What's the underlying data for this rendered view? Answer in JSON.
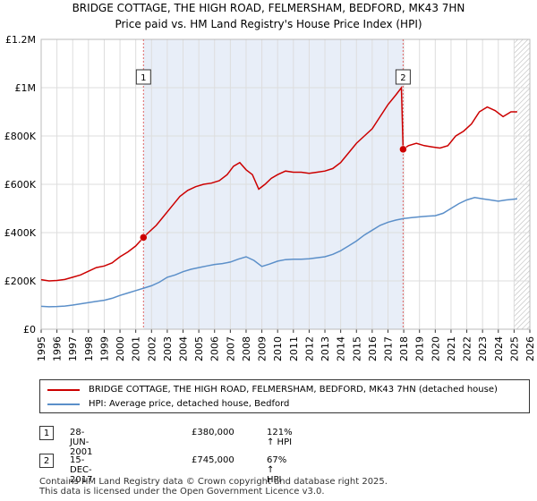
{
  "title_line1": "BRIDGE COTTAGE, THE HIGH ROAD, FELMERSHAM, BEDFORD, MK43 7HN",
  "title_line2": "Price paid vs. HM Land Registry's House Price Index (HPI)",
  "colors": {
    "property": "#cc0000",
    "hpi": "#5b8fc9",
    "shade": "#e8eef8",
    "marker": "#cc0000"
  },
  "chart_data": {
    "type": "line",
    "ylabels": [
      "£0",
      "£200K",
      "£400K",
      "£600K",
      "£800K",
      "£1M",
      "£1.2M"
    ],
    "yticks": [
      0,
      200000,
      400000,
      600000,
      800000,
      1000000,
      1200000
    ],
    "ylim": [
      0,
      1200000
    ],
    "xlim": [
      1995,
      2026
    ],
    "xticks": [
      "1995",
      "1996",
      "1997",
      "1998",
      "1999",
      "2000",
      "2001",
      "2002",
      "2003",
      "2004",
      "2005",
      "2006",
      "2007",
      "2008",
      "2009",
      "2010",
      "2011",
      "2012",
      "2013",
      "2014",
      "2015",
      "2016",
      "2017",
      "2018",
      "2019",
      "2020",
      "2021",
      "2022",
      "2023",
      "2024",
      "2025",
      "2026"
    ],
    "shaded_range": [
      2001.49,
      2017.96
    ],
    "hatched_from": 2025.0,
    "series": [
      {
        "name": "BRIDGE COTTAGE, THE HIGH ROAD, FELMERSHAM, BEDFORD, MK43 7HN (detached house)",
        "x": [
          1995,
          1995.5,
          1996,
          1996.5,
          1997,
          1997.5,
          1998,
          1998.5,
          1999,
          1999.5,
          2000,
          2000.5,
          2001,
          2001.49,
          2001.8,
          2002.3,
          2002.8,
          2003.3,
          2003.8,
          2004.3,
          2004.8,
          2005.3,
          2005.8,
          2006.3,
          2006.8,
          2007.2,
          2007.6,
          2008.0,
          2008.4,
          2008.8,
          2009.2,
          2009.6,
          2010.0,
          2010.5,
          2011.0,
          2011.5,
          2012.0,
          2012.5,
          2013.0,
          2013.5,
          2014.0,
          2014.5,
          2015.0,
          2015.5,
          2016.0,
          2016.5,
          2017.0,
          2017.5,
          2017.85,
          2017.96,
          2018.3,
          2018.8,
          2019.3,
          2019.8,
          2020.3,
          2020.8,
          2021.3,
          2021.8,
          2022.3,
          2022.8,
          2023.3,
          2023.8,
          2024.3,
          2024.8,
          2025.2
        ],
        "y": [
          205000,
          200000,
          202000,
          206000,
          215000,
          225000,
          240000,
          255000,
          262000,
          275000,
          300000,
          320000,
          345000,
          380000,
          400000,
          430000,
          470000,
          510000,
          550000,
          575000,
          590000,
          600000,
          605000,
          615000,
          640000,
          675000,
          690000,
          660000,
          640000,
          580000,
          600000,
          625000,
          640000,
          655000,
          650000,
          650000,
          645000,
          650000,
          655000,
          665000,
          690000,
          730000,
          770000,
          800000,
          830000,
          880000,
          930000,
          970000,
          1000000,
          745000,
          760000,
          770000,
          760000,
          755000,
          750000,
          760000,
          800000,
          820000,
          850000,
          900000,
          920000,
          905000,
          880000,
          900000,
          900000
        ]
      },
      {
        "name": "HPI: Average price, detached house, Bedford",
        "x": [
          1995,
          1995.5,
          1996,
          1996.5,
          1997,
          1997.5,
          1998,
          1998.5,
          1999,
          1999.5,
          2000,
          2000.5,
          2001,
          2001.5,
          2002,
          2002.5,
          2003,
          2003.5,
          2004,
          2004.5,
          2005,
          2005.5,
          2006,
          2006.5,
          2007,
          2007.5,
          2008,
          2008.5,
          2009,
          2009.5,
          2010,
          2010.5,
          2011,
          2011.5,
          2012,
          2012.5,
          2013,
          2013.5,
          2014,
          2014.5,
          2015,
          2015.5,
          2016,
          2016.5,
          2017,
          2017.5,
          2018,
          2018.5,
          2019,
          2019.5,
          2020,
          2020.5,
          2021,
          2021.5,
          2022,
          2022.5,
          2023,
          2023.5,
          2024,
          2024.5,
          2025.2
        ],
        "y": [
          95000,
          93000,
          94000,
          96000,
          100000,
          105000,
          110000,
          115000,
          120000,
          128000,
          140000,
          150000,
          160000,
          170000,
          180000,
          195000,
          215000,
          225000,
          238000,
          248000,
          255000,
          262000,
          268000,
          272000,
          278000,
          290000,
          300000,
          285000,
          260000,
          270000,
          282000,
          288000,
          290000,
          290000,
          292000,
          296000,
          300000,
          310000,
          325000,
          345000,
          365000,
          390000,
          410000,
          430000,
          443000,
          452000,
          458000,
          462000,
          465000,
          468000,
          470000,
          480000,
          500000,
          520000,
          535000,
          545000,
          540000,
          535000,
          530000,
          535000,
          540000
        ]
      }
    ],
    "markers": [
      {
        "label": "1",
        "x": 2001.49,
        "y": 380000
      },
      {
        "label": "2",
        "x": 2017.96,
        "y": 745000
      }
    ]
  },
  "legend": {
    "property_label": "BRIDGE COTTAGE, THE HIGH ROAD, FELMERSHAM, BEDFORD, MK43 7HN (detached house)",
    "hpi_label": "HPI: Average price, detached house, Bedford"
  },
  "sales": [
    {
      "num": "1",
      "date": "28-JUN-2001",
      "price": "£380,000",
      "hpi": "121% ↑ HPI"
    },
    {
      "num": "2",
      "date": "15-DEC-2017",
      "price": "£745,000",
      "hpi": "67% ↑ HPI"
    }
  ],
  "footer_line1": "Contains HM Land Registry data © Crown copyright and database right 2025.",
  "footer_line2": "This data is licensed under the Open Government Licence v3.0."
}
